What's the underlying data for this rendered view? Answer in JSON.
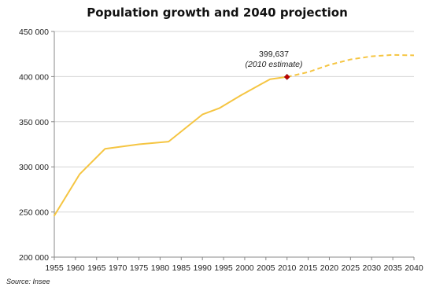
{
  "chart_data": {
    "type": "line",
    "title": "Population growth and 2040 projection",
    "xlim": [
      1955,
      2040
    ],
    "ylim": [
      200000,
      450000
    ],
    "x_ticks": [
      "1955",
      "1960",
      "1965",
      "1970",
      "1975",
      "1980",
      "1985",
      "1990",
      "1995",
      "2000",
      "2005",
      "2010",
      "2015",
      "2020",
      "2025",
      "2030",
      "2035",
      "2040"
    ],
    "y_ticks": [
      "200 000",
      "250 000",
      "300 000",
      "350 000",
      "400 000",
      "450 000"
    ],
    "grid": "horizontal",
    "series": [
      {
        "style": "solid",
        "color": "#F5C542",
        "points": [
          [
            1955,
            246000
          ],
          [
            1961,
            292000
          ],
          [
            1967,
            320000
          ],
          [
            1975,
            325000
          ],
          [
            1982,
            328000
          ],
          [
            1990,
            358000
          ],
          [
            1994,
            365000
          ],
          [
            1999,
            379000
          ],
          [
            2004,
            392000
          ],
          [
            2006,
            397000
          ],
          [
            2010,
            399637
          ]
        ]
      },
      {
        "style": "dashed",
        "color": "#F5C542",
        "points": [
          [
            2010,
            399637
          ],
          [
            2015,
            405000
          ],
          [
            2020,
            413000
          ],
          [
            2025,
            419000
          ],
          [
            2030,
            422500
          ],
          [
            2035,
            424000
          ],
          [
            2040,
            423500
          ]
        ]
      }
    ],
    "marker": {
      "x": 2010,
      "y": 399637,
      "color": "#C00000"
    },
    "annotation": {
      "value": "399,637",
      "note": "(2010 estimate)"
    },
    "source": "Source: Insee"
  }
}
